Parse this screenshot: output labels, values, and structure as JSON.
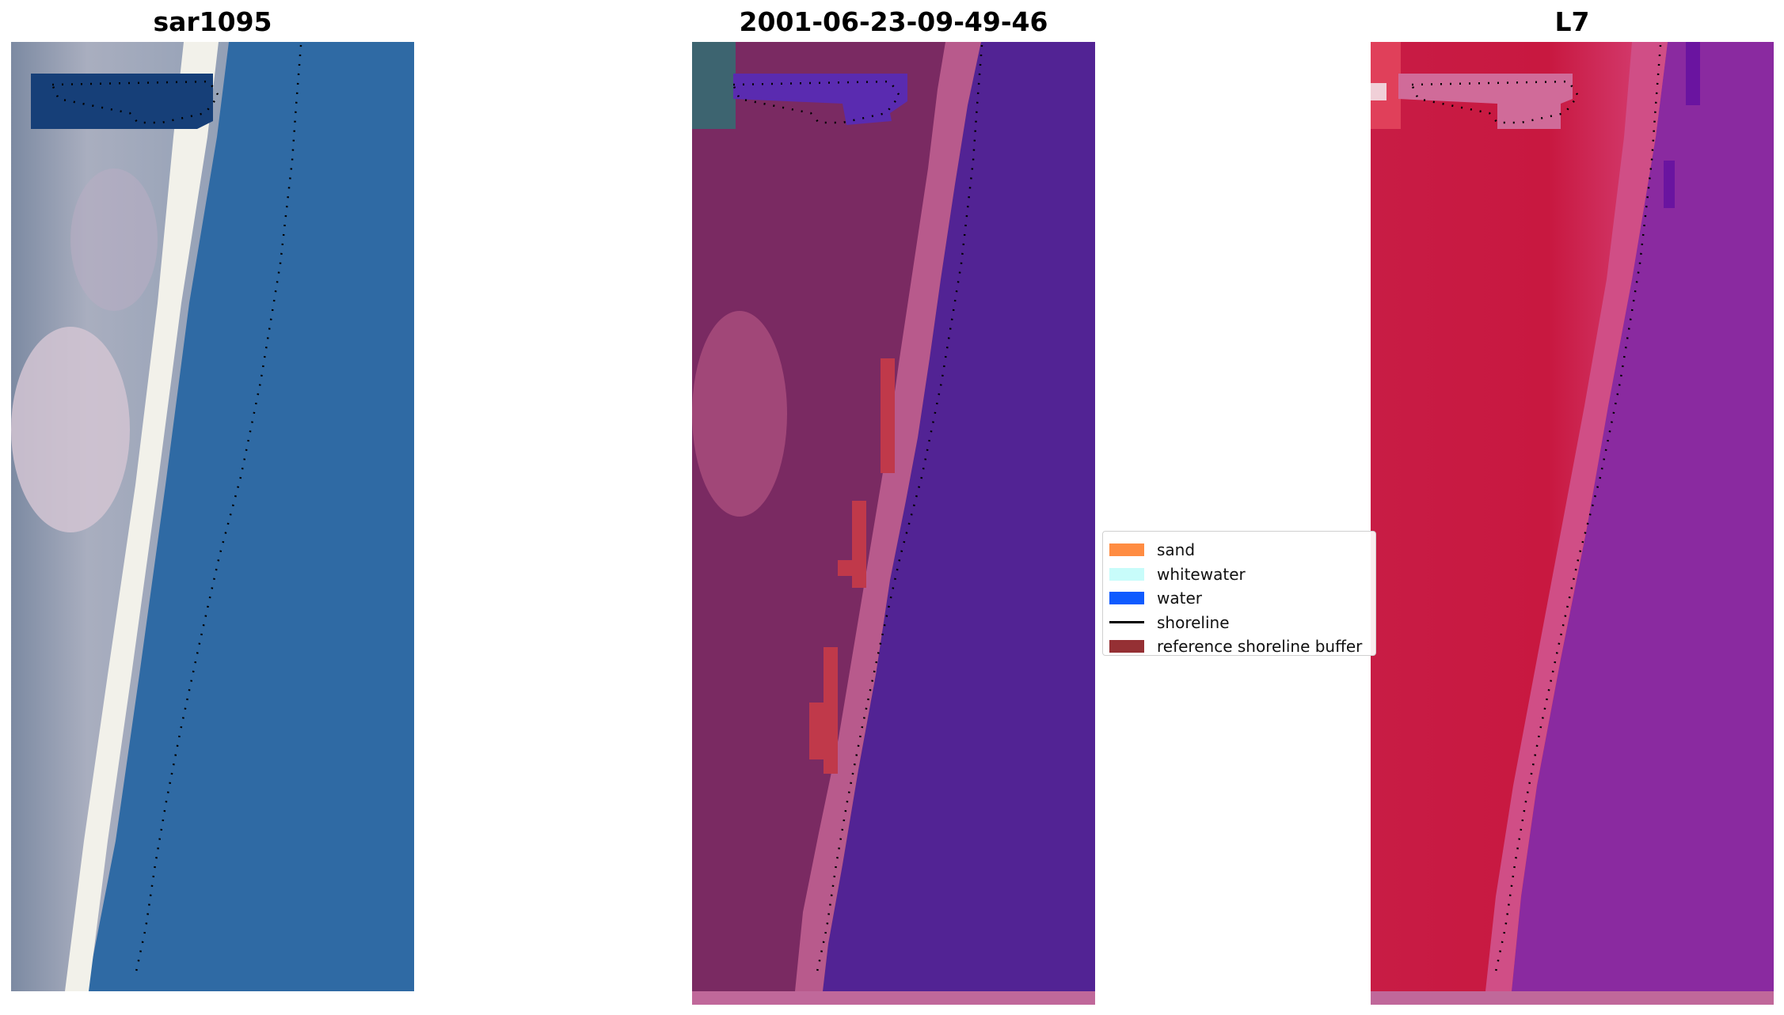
{
  "panels": {
    "rgb": {
      "title": "sar1095"
    },
    "classified": {
      "title": "2001-06-23-09-49-46"
    },
    "index": {
      "title": "L7"
    }
  },
  "legend": {
    "items": [
      {
        "label": "sand",
        "color": "#ff8c42",
        "kind": "patch",
        "icon": "sand-swatch"
      },
      {
        "label": "whitewater",
        "color": "#c8fcfa",
        "kind": "patch",
        "icon": "whitewater-swatch"
      },
      {
        "label": "water",
        "color": "#0f5bff",
        "kind": "patch",
        "icon": "water-swatch"
      },
      {
        "label": "shoreline",
        "color": "#000000",
        "kind": "line",
        "icon": "shoreline-line"
      },
      {
        "label": "reference shoreline buffer",
        "color": "#953034",
        "kind": "patch",
        "icon": "buffer-swatch"
      }
    ]
  },
  "colors": {
    "water_class": "#522394",
    "land_overlay": "#7a2a62",
    "buffer": "#c0394a",
    "index_land": "#c41c45",
    "index_water": "#8a2aa0",
    "rgb_water": "#2f6aa4",
    "rgb_sand": "#f2f1ea"
  }
}
